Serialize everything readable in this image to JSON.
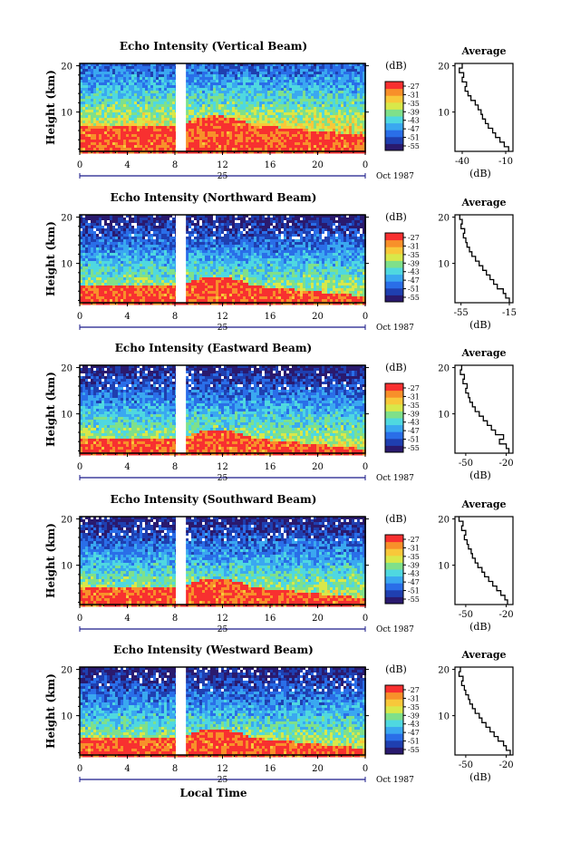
{
  "figure": {
    "xlabel_bottom": "Local Time",
    "date_label": "Oct 1987",
    "day_label": "25",
    "colorbar_unit": "(dB)",
    "colorbar_ticks": [
      "-27",
      "-31",
      "-35",
      "-39",
      "-43",
      "-47",
      "-51",
      "-55"
    ],
    "colors": {
      "colormap": [
        "#2a1a6e",
        "#1f3fb0",
        "#2a6ee8",
        "#3aa8f0",
        "#4fd8e0",
        "#7fe08a",
        "#d8e84a",
        "#f8c83a",
        "#f8902a",
        "#f83030"
      ],
      "data_gap": "#ffffff",
      "axis": "#000000",
      "date_axis": "#1a1a8a"
    }
  },
  "chart_data": [
    {
      "type": "heatmap",
      "title": "Echo Intensity (Vertical Beam)",
      "ylabel": "Height (km)",
      "xticks": [
        "0",
        "4",
        "8",
        "12",
        "16",
        "20",
        "0"
      ],
      "yticks": [
        "20",
        "10"
      ],
      "xlim": [
        0,
        24
      ],
      "ylim": [
        1.5,
        20.5
      ],
      "gap_hours": [
        8,
        9
      ],
      "colorbar_label": "(dB)",
      "colorbar_range": [
        -55,
        -27
      ],
      "near_surface_high_top_km": 7.5,
      "average_profile": {
        "title": "Average",
        "xlabel": "(dB)",
        "xticks": [
          "-40",
          "-10"
        ],
        "xlim": [
          -45,
          -5
        ],
        "yticks": [
          "20",
          "10"
        ],
        "height": [
          2,
          3,
          4,
          5,
          6,
          7,
          8,
          9,
          10,
          11,
          12,
          13,
          14,
          15,
          16,
          17,
          18,
          19,
          20
        ],
        "db": [
          -8,
          -11,
          -14,
          -17,
          -19,
          -22,
          -24,
          -26,
          -27,
          -29,
          -31,
          -34,
          -36,
          -38,
          -37,
          -40,
          -39,
          -42,
          -40
        ]
      }
    },
    {
      "type": "heatmap",
      "title": "Echo Intensity (Northward Beam)",
      "ylabel": "Height (km)",
      "xticks": [
        "0",
        "4",
        "8",
        "12",
        "16",
        "20",
        "0"
      ],
      "yticks": [
        "20",
        "10"
      ],
      "xlim": [
        0,
        24
      ],
      "ylim": [
        1.5,
        20.5
      ],
      "gap_hours": [
        8,
        9
      ],
      "colorbar_label": "(dB)",
      "colorbar_range": [
        -55,
        -27
      ],
      "near_surface_high_top_km": 5.5,
      "average_profile": {
        "title": "Average",
        "xlabel": "(dB)",
        "xticks": [
          "-55",
          "-15"
        ],
        "xlim": [
          -60,
          -12
        ],
        "yticks": [
          "20",
          "10"
        ],
        "height": [
          2,
          3,
          4,
          5,
          6,
          7,
          8,
          9,
          10,
          11,
          12,
          13,
          14,
          15,
          16,
          17,
          18,
          19,
          20
        ],
        "db": [
          -15,
          -18,
          -20,
          -25,
          -28,
          -31,
          -34,
          -37,
          -40,
          -43,
          -46,
          -48,
          -50,
          -51,
          -53,
          -52,
          -55,
          -54,
          -56
        ]
      }
    },
    {
      "type": "heatmap",
      "title": "Echo Intensity (Eastward Beam)",
      "ylabel": "Height (km)",
      "xticks": [
        "0",
        "4",
        "8",
        "12",
        "16",
        "20",
        "0"
      ],
      "yticks": [
        "20",
        "10"
      ],
      "xlim": [
        0,
        24
      ],
      "ylim": [
        1.5,
        20.5
      ],
      "gap_hours": [
        8,
        9
      ],
      "colorbar_label": "(dB)",
      "colorbar_range": [
        -55,
        -27
      ],
      "near_surface_high_top_km": 5.0,
      "average_profile": {
        "title": "Average",
        "xlabel": "(dB)",
        "xticks": [
          "-50",
          "-20"
        ],
        "xlim": [
          -58,
          -15
        ],
        "yticks": [
          "20",
          "10"
        ],
        "height": [
          2,
          3,
          4,
          5,
          6,
          7,
          8,
          9,
          10,
          11,
          12,
          13,
          14,
          15,
          16,
          17,
          18,
          19,
          20
        ],
        "db": [
          -18,
          -20,
          -25,
          -22,
          -28,
          -31,
          -34,
          -37,
          -40,
          -43,
          -45,
          -47,
          -48,
          -50,
          -49,
          -52,
          -51,
          -54,
          -53
        ]
      }
    },
    {
      "type": "heatmap",
      "title": "Echo Intensity (Southward Beam)",
      "ylabel": "Height (km)",
      "xticks": [
        "0",
        "4",
        "8",
        "12",
        "16",
        "20",
        "0"
      ],
      "yticks": [
        "20",
        "10"
      ],
      "xlim": [
        0,
        24
      ],
      "ylim": [
        1.5,
        20.5
      ],
      "gap_hours": [
        8,
        9
      ],
      "colorbar_label": "(dB)",
      "colorbar_range": [
        -55,
        -27
      ],
      "near_surface_high_top_km": 5.5,
      "average_profile": {
        "title": "Average",
        "xlabel": "(dB)",
        "xticks": [
          "-50",
          "-20"
        ],
        "xlim": [
          -58,
          -15
        ],
        "yticks": [
          "20",
          "10"
        ],
        "height": [
          2,
          3,
          4,
          5,
          6,
          7,
          8,
          9,
          10,
          11,
          12,
          13,
          14,
          15,
          16,
          17,
          18,
          19,
          20
        ],
        "db": [
          -19,
          -21,
          -24,
          -27,
          -30,
          -33,
          -36,
          -38,
          -41,
          -43,
          -45,
          -46,
          -48,
          -49,
          -51,
          -50,
          -53,
          -52,
          -55
        ]
      }
    },
    {
      "type": "heatmap",
      "title": "Echo Intensity (Westward Beam)",
      "ylabel": "Height (km)",
      "xticks": [
        "0",
        "4",
        "8",
        "12",
        "16",
        "20",
        "0"
      ],
      "yticks": [
        "20",
        "10"
      ],
      "xlim": [
        0,
        24
      ],
      "ylim": [
        1.5,
        20.5
      ],
      "gap_hours": [
        8,
        9
      ],
      "colorbar_label": "(dB)",
      "colorbar_range": [
        -55,
        -27
      ],
      "near_surface_high_top_km": 5.5,
      "average_profile": {
        "title": "Average",
        "xlabel": "(dB)",
        "xticks": [
          "-50",
          "-20"
        ],
        "xlim": [
          -58,
          -15
        ],
        "yticks": [
          "20",
          "10"
        ],
        "height": [
          2,
          3,
          4,
          5,
          6,
          7,
          8,
          9,
          10,
          11,
          12,
          13,
          14,
          15,
          16,
          17,
          18,
          19,
          20
        ],
        "db": [
          -17,
          -20,
          -22,
          -26,
          -29,
          -32,
          -35,
          -38,
          -40,
          -43,
          -45,
          -47,
          -48,
          -50,
          -51,
          -53,
          -52,
          -55,
          -54
        ]
      }
    }
  ]
}
